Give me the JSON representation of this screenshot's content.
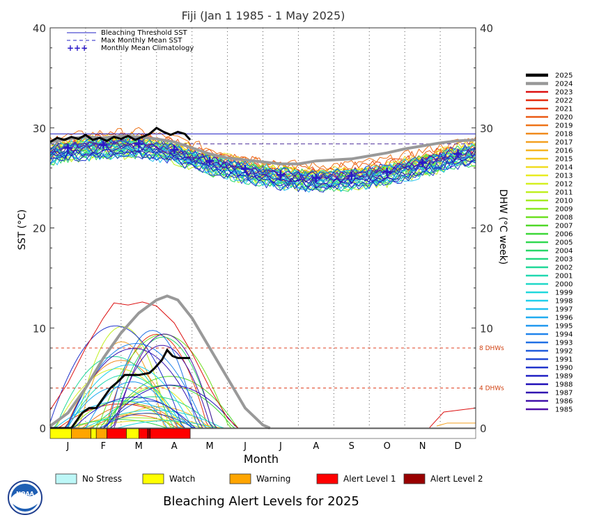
{
  "chart_data": {
    "type": "line",
    "title": "Fiji      (Jan 1 1985 - 1 May 2025)",
    "xlabel": "Month",
    "ylabel_left": "SST (°C)",
    "ylabel_right": "DHW (°C week)",
    "x_ticks": [
      "J",
      "F",
      "M",
      "A",
      "M",
      "J",
      "J",
      "A",
      "S",
      "O",
      "N",
      "D"
    ],
    "y_ticks_left": [
      "0",
      "10",
      "20",
      "30",
      "40"
    ],
    "y_ticks_right": [
      "0",
      "10",
      "20",
      "30",
      "40"
    ],
    "ylim": [
      0,
      40
    ],
    "xlim_months": [
      0,
      12
    ],
    "legend_items": [
      "Bleaching Threshold SST",
      "Max Monthly Mean SST",
      "Monthly Mean Climatology"
    ],
    "bleaching_threshold": 29.4,
    "max_monthly_mean": 28.4,
    "dhw_reference_lines": [
      {
        "value": 4,
        "label": "4 DHWs"
      },
      {
        "value": 8,
        "label": "8 DHWs"
      }
    ],
    "climatology": [
      {
        "x": 0.5,
        "y": 28.0
      },
      {
        "x": 1.5,
        "y": 28.3
      },
      {
        "x": 2.5,
        "y": 28.4
      },
      {
        "x": 3.5,
        "y": 27.8
      },
      {
        "x": 4.5,
        "y": 26.7
      },
      {
        "x": 5.5,
        "y": 25.9
      },
      {
        "x": 6.5,
        "y": 25.3
      },
      {
        "x": 7.5,
        "y": 25.0
      },
      {
        "x": 8.5,
        "y": 25.2
      },
      {
        "x": 9.5,
        "y": 25.6
      },
      {
        "x": 10.5,
        "y": 26.5
      },
      {
        "x": 11.5,
        "y": 27.4
      }
    ],
    "years": [
      "2025",
      "2024",
      "2023",
      "2022",
      "2021",
      "2020",
      "2019",
      "2018",
      "2017",
      "2016",
      "2015",
      "2014",
      "2013",
      "2012",
      "2011",
      "2010",
      "2009",
      "2008",
      "2007",
      "2006",
      "2005",
      "2004",
      "2003",
      "2002",
      "2001",
      "2000",
      "1999",
      "1998",
      "1997",
      "1996",
      "1995",
      "1994",
      "1993",
      "1992",
      "1991",
      "1990",
      "1989",
      "1988",
      "1987",
      "1986",
      "1985"
    ],
    "year_colors": [
      "#000000",
      "#999999",
      "#dd1111",
      "#e42a0c",
      "#e63c10",
      "#ea5a14",
      "#ee7218",
      "#f08a1c",
      "#f4a020",
      "#f6b420",
      "#f6c820",
      "#f0dc20",
      "#e8ec20",
      "#d4f020",
      "#c0f020",
      "#a4ec20",
      "#88e820",
      "#6ce020",
      "#50d828",
      "#3cd838",
      "#30d850",
      "#28d868",
      "#24d880",
      "#20d898",
      "#20d8b0",
      "#20d8c8",
      "#20d8dc",
      "#20d0ec",
      "#20c0f0",
      "#20acf0",
      "#2098f0",
      "#2084ec",
      "#2070e4",
      "#205cdc",
      "#2048d4",
      "#2034cc",
      "#2020c4",
      "#2010b8",
      "#3010b0",
      "#4010aa",
      "#5010a8"
    ],
    "sst_2025": [
      {
        "x": 0.0,
        "y": 28.6
      },
      {
        "x": 0.2,
        "y": 29.0
      },
      {
        "x": 0.4,
        "y": 28.8
      },
      {
        "x": 0.6,
        "y": 29.1
      },
      {
        "x": 0.8,
        "y": 28.9
      },
      {
        "x": 1.0,
        "y": 29.3
      },
      {
        "x": 1.2,
        "y": 28.8
      },
      {
        "x": 1.4,
        "y": 29.0
      },
      {
        "x": 1.6,
        "y": 28.7
      },
      {
        "x": 1.8,
        "y": 29.1
      },
      {
        "x": 2.0,
        "y": 28.9
      },
      {
        "x": 2.2,
        "y": 29.2
      },
      {
        "x": 2.4,
        "y": 28.8
      },
      {
        "x": 2.6,
        "y": 29.1
      },
      {
        "x": 2.8,
        "y": 29.4
      },
      {
        "x": 3.0,
        "y": 30.0
      },
      {
        "x": 3.2,
        "y": 29.6
      },
      {
        "x": 3.4,
        "y": 29.3
      },
      {
        "x": 3.6,
        "y": 29.6
      },
      {
        "x": 3.8,
        "y": 29.4
      },
      {
        "x": 3.95,
        "y": 28.8
      }
    ],
    "sst_2024": [
      {
        "x": 0.0,
        "y": 28.6
      },
      {
        "x": 0.5,
        "y": 28.9
      },
      {
        "x": 1.0,
        "y": 29.1
      },
      {
        "x": 1.5,
        "y": 29.0
      },
      {
        "x": 2.0,
        "y": 29.2
      },
      {
        "x": 2.5,
        "y": 29.1
      },
      {
        "x": 3.0,
        "y": 28.9
      },
      {
        "x": 3.5,
        "y": 28.6
      },
      {
        "x": 4.0,
        "y": 28.0
      },
      {
        "x": 4.5,
        "y": 27.4
      },
      {
        "x": 5.0,
        "y": 27.0
      },
      {
        "x": 5.5,
        "y": 26.8
      },
      {
        "x": 6.0,
        "y": 26.6
      },
      {
        "x": 6.5,
        "y": 26.4
      },
      {
        "x": 7.0,
        "y": 26.4
      },
      {
        "x": 7.5,
        "y": 26.7
      },
      {
        "x": 8.0,
        "y": 26.8
      },
      {
        "x": 8.5,
        "y": 26.9
      },
      {
        "x": 9.0,
        "y": 27.2
      },
      {
        "x": 9.5,
        "y": 27.5
      },
      {
        "x": 10.0,
        "y": 27.9
      },
      {
        "x": 10.5,
        "y": 28.2
      },
      {
        "x": 11.0,
        "y": 28.5
      },
      {
        "x": 11.5,
        "y": 28.7
      },
      {
        "x": 12.0,
        "y": 28.8
      }
    ],
    "dhw_2025": [
      {
        "x": 0.0,
        "y": 0
      },
      {
        "x": 0.6,
        "y": 0.0
      },
      {
        "x": 0.9,
        "y": 1.5
      },
      {
        "x": 1.1,
        "y": 2.0
      },
      {
        "x": 1.3,
        "y": 2.0
      },
      {
        "x": 1.5,
        "y": 3.0
      },
      {
        "x": 1.7,
        "y": 4.0
      },
      {
        "x": 1.9,
        "y": 4.6
      },
      {
        "x": 2.1,
        "y": 5.3
      },
      {
        "x": 2.5,
        "y": 5.3
      },
      {
        "x": 2.8,
        "y": 5.5
      },
      {
        "x": 2.95,
        "y": 6.0
      },
      {
        "x": 3.15,
        "y": 6.8
      },
      {
        "x": 3.3,
        "y": 7.8
      },
      {
        "x": 3.45,
        "y": 7.2
      },
      {
        "x": 3.6,
        "y": 7.0
      },
      {
        "x": 3.95,
        "y": 7.0
      }
    ],
    "dhw_2024": [
      {
        "x": 0.0,
        "y": 0.2
      },
      {
        "x": 0.5,
        "y": 1.5
      },
      {
        "x": 1.0,
        "y": 4.0
      },
      {
        "x": 1.5,
        "y": 7.0
      },
      {
        "x": 2.0,
        "y": 9.5
      },
      {
        "x": 2.5,
        "y": 11.5
      },
      {
        "x": 3.0,
        "y": 12.8
      },
      {
        "x": 3.3,
        "y": 13.2
      },
      {
        "x": 3.6,
        "y": 12.8
      },
      {
        "x": 4.0,
        "y": 11.0
      },
      {
        "x": 4.5,
        "y": 8.0
      },
      {
        "x": 5.0,
        "y": 5.0
      },
      {
        "x": 5.5,
        "y": 2.0
      },
      {
        "x": 6.0,
        "y": 0.3
      },
      {
        "x": 6.2,
        "y": 0.0
      }
    ],
    "dhw_2023": [
      {
        "x": 0.0,
        "y": 1.8
      },
      {
        "x": 0.5,
        "y": 4.5
      },
      {
        "x": 1.0,
        "y": 8.0
      },
      {
        "x": 1.5,
        "y": 11.0
      },
      {
        "x": 1.8,
        "y": 12.5
      },
      {
        "x": 2.2,
        "y": 12.3
      },
      {
        "x": 2.6,
        "y": 12.6
      },
      {
        "x": 3.0,
        "y": 12.2
      },
      {
        "x": 3.5,
        "y": 10.5
      },
      {
        "x": 4.0,
        "y": 7.5
      },
      {
        "x": 4.5,
        "y": 4.0
      },
      {
        "x": 5.0,
        "y": 1.0
      },
      {
        "x": 5.3,
        "y": 0.0
      }
    ],
    "alert_bar": [
      {
        "level": "Watch",
        "start": 0.0,
        "end": 0.6
      },
      {
        "level": "Warning",
        "start": 0.6,
        "end": 1.15
      },
      {
        "level": "Watch",
        "start": 1.15,
        "end": 1.3
      },
      {
        "level": "Warning",
        "start": 1.3,
        "end": 1.6
      },
      {
        "level": "Alert Level 1",
        "start": 1.6,
        "end": 2.15
      },
      {
        "level": "Watch",
        "start": 2.15,
        "end": 2.5
      },
      {
        "level": "Alert Level 1",
        "start": 2.5,
        "end": 2.75
      },
      {
        "level": "Alert Level 2",
        "start": 2.75,
        "end": 2.82
      },
      {
        "level": "Alert Level 1",
        "start": 2.82,
        "end": 3.95
      }
    ],
    "alert_colors": {
      "No Stress": "#bdf7f7",
      "Watch": "#ffff00",
      "Warning": "#ffa500",
      "Alert Level 1": "#ff0000",
      "Alert Level 2": "#990000"
    }
  },
  "legend_levels": [
    "No Stress",
    "Watch",
    "Warning",
    "Alert Level 1",
    "Alert Level 2"
  ],
  "footer_title": "Bleaching Alert Levels for 2025",
  "logo_text": "NOAA"
}
